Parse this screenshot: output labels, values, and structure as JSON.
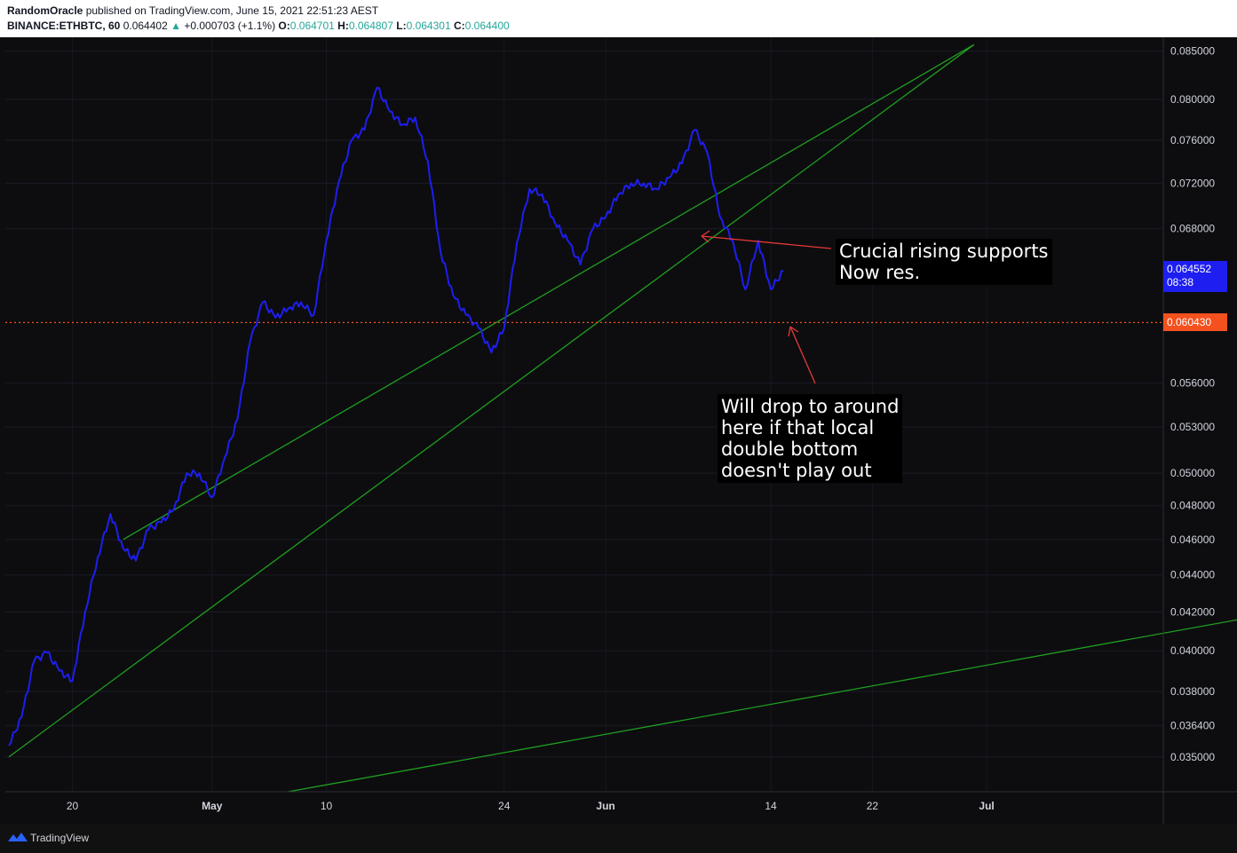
{
  "header": {
    "author": "RandomOracle",
    "published_text": " published on TradingView.com, June 15, 2021 22:51:23 AEST",
    "symbol": "BINANCE:ETHBTC, 60",
    "last": "0.064402",
    "change": "+0.000703 (+1.1%)",
    "o_label": "O:",
    "o_val": "0.064701",
    "h_label": "H:",
    "h_val": "0.064807",
    "l_label": "L:",
    "l_val": "0.064301",
    "c_label": "C:",
    "c_val": "0.064400"
  },
  "badges": {
    "current_price": "0.064552",
    "countdown": "08:38",
    "level_price": "0.060430"
  },
  "annotations": {
    "resistance_note": "Crucial rising supports\nNow res.",
    "drop_note": "Will drop to around\nhere if that local\ndouble bottom\ndoesn't play out"
  },
  "footer": {
    "brand": "TradingView"
  },
  "colors": {
    "background": "#0d0d10",
    "price_line": "#1e1ef0",
    "trendline": "#1f9e1f",
    "level_line": "#f4511e",
    "arrow": "#e53935",
    "current_badge": "#1e1ef0",
    "level_badge": "#f4511e"
  },
  "chart_data": {
    "type": "line",
    "y_scale": "log",
    "ylim": [
      0.0335,
      0.0865
    ],
    "y_ticks": [
      "0.085000",
      "0.080000",
      "0.076000",
      "0.072000",
      "0.068000",
      "0.056000",
      "0.053000",
      "0.050000",
      "0.048000",
      "0.046000",
      "0.044000",
      "0.042000",
      "0.040000",
      "0.038000",
      "0.036400",
      "0.035000"
    ],
    "x_ticks": [
      "20",
      "May",
      "10",
      "24",
      "Jun",
      "14",
      "22",
      "Jul"
    ],
    "series": [
      {
        "x": [
          "2021-04-15",
          "2021-04-16",
          "2021-04-17",
          "2021-04-18",
          "2021-04-19",
          "2021-04-20",
          "2021-04-21",
          "2021-04-22",
          "2021-04-23",
          "2021-04-24",
          "2021-04-25",
          "2021-04-26",
          "2021-04-27",
          "2021-04-28",
          "2021-04-29",
          "2021-04-30",
          "2021-05-01",
          "2021-05-02",
          "2021-05-03",
          "2021-05-04",
          "2021-05-05",
          "2021-05-06",
          "2021-05-07",
          "2021-05-08",
          "2021-05-09",
          "2021-05-10",
          "2021-05-11",
          "2021-05-12",
          "2021-05-13",
          "2021-05-14",
          "2021-05-15",
          "2021-05-16",
          "2021-05-17",
          "2021-05-18",
          "2021-05-19",
          "2021-05-20",
          "2021-05-21",
          "2021-05-22",
          "2021-05-23",
          "2021-05-24",
          "2021-05-25",
          "2021-05-26",
          "2021-05-27",
          "2021-05-28",
          "2021-05-29",
          "2021-05-30",
          "2021-05-31",
          "2021-06-01",
          "2021-06-02",
          "2021-06-03",
          "2021-06-04",
          "2021-06-05",
          "2021-06-06",
          "2021-06-07",
          "2021-06-08",
          "2021-06-09",
          "2021-06-10",
          "2021-06-11",
          "2021-06-12",
          "2021-06-13",
          "2021-06-14",
          "2021-06-15"
        ],
        "values": [
          0.0355,
          0.0368,
          0.0395,
          0.0399,
          0.039,
          0.0385,
          0.042,
          0.045,
          0.0475,
          0.0455,
          0.0448,
          0.0466,
          0.047,
          0.0478,
          0.05,
          0.05,
          0.0485,
          0.051,
          0.0535,
          0.059,
          0.062,
          0.0608,
          0.0615,
          0.062,
          0.061,
          0.067,
          0.0722,
          0.076,
          0.077,
          0.0812,
          0.0788,
          0.0775,
          0.0782,
          0.074,
          0.066,
          0.0625,
          0.061,
          0.06,
          0.0582,
          0.06,
          0.0668,
          0.0715,
          0.071,
          0.0685,
          0.067,
          0.065,
          0.068,
          0.069,
          0.071,
          0.072,
          0.072,
          0.0715,
          0.0725,
          0.0738,
          0.077,
          0.0748,
          0.069,
          0.067,
          0.063,
          0.067,
          0.063,
          0.0645
        ]
      }
    ],
    "trendlines": [
      {
        "x": [
          "2021-04-24",
          "2021-06-30"
        ],
        "y": [
          0.046,
          0.0857
        ]
      },
      {
        "x": [
          "2021-04-15",
          "2021-06-30"
        ],
        "y": [
          0.035,
          0.0857
        ]
      },
      {
        "x": [
          "2021-05-07",
          "2021-07-25"
        ],
        "y": [
          0.0335,
          0.0421
        ]
      }
    ],
    "horizontal_level": 0.06043,
    "grid": true
  }
}
